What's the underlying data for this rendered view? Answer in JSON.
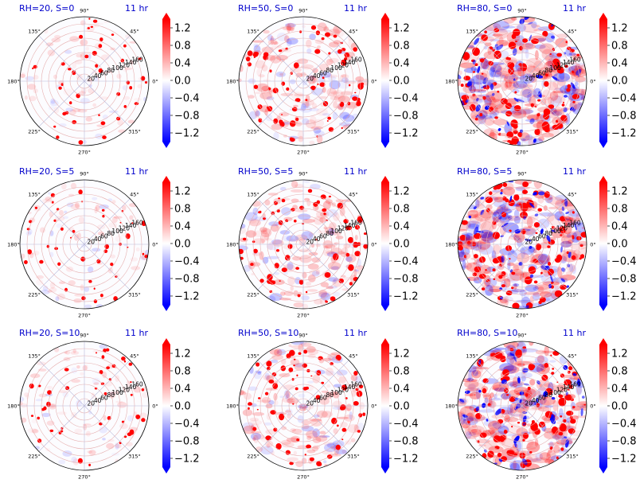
{
  "chart_data": {
    "type": "heatmap",
    "projection": "polar",
    "grid": true,
    "time_label": "11 hr",
    "angle_ticks": [
      "0°",
      "45°",
      "90°",
      "135°",
      "180°",
      "225°",
      "270°",
      "315°"
    ],
    "radial_ticks": [
      "20",
      "40",
      "60",
      "80",
      "100",
      "120",
      "140",
      "160"
    ],
    "radial_range": [
      0,
      180
    ],
    "radial_label_angle_deg": 22.5,
    "colorbar": {
      "ticks": [
        "1.2",
        "0.8",
        "0.4",
        "0.0",
        "−0.4",
        "−0.8",
        "−1.2"
      ],
      "range": [
        -1.4,
        1.4
      ],
      "colormap": "bwr",
      "extend": "both"
    },
    "panels": [
      {
        "title": "RH=20, S=0",
        "rh": 20,
        "s": 0,
        "activity": 0.2
      },
      {
        "title": "RH=50, S=0",
        "rh": 50,
        "s": 0,
        "activity": 0.55
      },
      {
        "title": "RH=80, S=0",
        "rh": 80,
        "s": 0,
        "activity": 1.0
      },
      {
        "title": "RH=20, S=5",
        "rh": 20,
        "s": 5,
        "activity": 0.2
      },
      {
        "title": "RH=50, S=5",
        "rh": 50,
        "s": 5,
        "activity": 0.55
      },
      {
        "title": "RH=80, S=5",
        "rh": 80,
        "s": 5,
        "activity": 1.0
      },
      {
        "title": "RH=20, S=10",
        "rh": 20,
        "s": 10,
        "activity": 0.22
      },
      {
        "title": "RH=50, S=10",
        "rh": 50,
        "s": 10,
        "activity": 0.55
      },
      {
        "title": "RH=80, S=10",
        "rh": 80,
        "s": 10,
        "activity": 1.0
      }
    ]
  },
  "colors": {
    "positive": "#ff0000",
    "negative": "#0000ff",
    "zero": "#ffffff",
    "title": "#0000cc",
    "grid_radial": "#e6b0b0",
    "grid_spoke": "#b8b8d8"
  }
}
